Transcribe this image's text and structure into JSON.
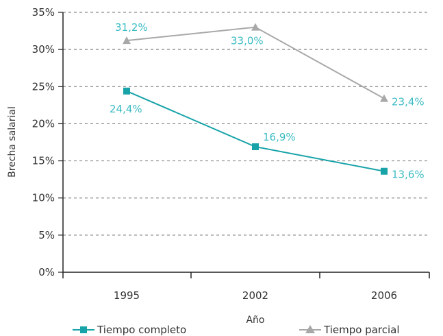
{
  "chart_data": {
    "type": "line",
    "title": "",
    "xlabel": "Año",
    "ylabel": "Brecha salarial",
    "categories": [
      "1995",
      "2002",
      "2006"
    ],
    "ylim": [
      0,
      35
    ],
    "y_ticks": [
      "0%",
      "5%",
      "10%",
      "15%",
      "20%",
      "25%",
      "30%",
      "35%"
    ],
    "grid": true,
    "legend_position": "bottom",
    "series": [
      {
        "name": "Tiempo completo",
        "values": [
          24.4,
          16.9,
          13.6
        ],
        "labels": [
          "24,4%",
          "16,9%",
          "13,6%"
        ],
        "color": "#17a3a8",
        "label_color": "#3bbcc4",
        "marker": "square"
      },
      {
        "name": "Tiempo parcial",
        "values": [
          31.2,
          33.0,
          23.4
        ],
        "labels": [
          "31,2%",
          "33,0%",
          "23,4%"
        ],
        "color": "#a8a8a8",
        "label_color": "#3bbcc4",
        "marker": "triangle"
      }
    ]
  }
}
